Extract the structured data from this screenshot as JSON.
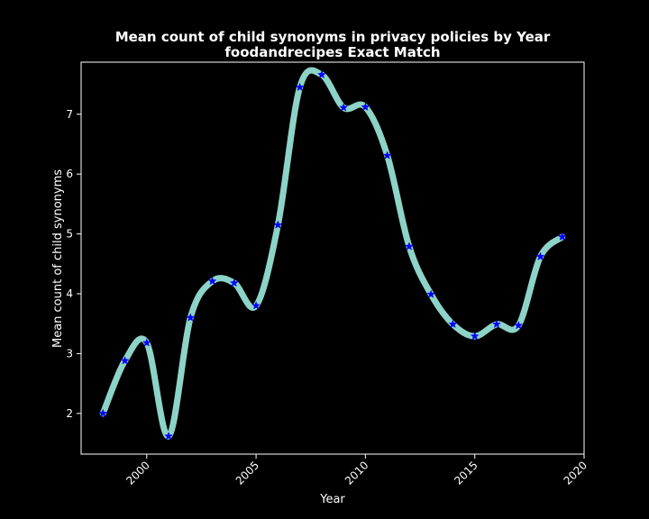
{
  "chart_data": {
    "type": "line",
    "title": "Mean count of child synonyms in privacy policies by Year",
    "subtitle": "foodandrecipes Exact Match",
    "xlabel": "Year",
    "ylabel": "Mean count of child synonyms",
    "xlim": [
      1997,
      2020
    ],
    "ylim": [
      1.32,
      7.87
    ],
    "xticks": [
      2000,
      2005,
      2010,
      2015,
      2020
    ],
    "yticks": [
      2,
      3,
      4,
      5,
      6,
      7
    ],
    "grid": false,
    "line_color": "#8dd3c7",
    "marker_color": "#0000ff",
    "background": "#000000",
    "x": [
      1998,
      1999,
      2000,
      2001,
      2002,
      2003,
      2004,
      2005,
      2006,
      2007,
      2008,
      2009,
      2010,
      2011,
      2012,
      2013,
      2014,
      2015,
      2016,
      2017,
      2018,
      2019
    ],
    "values": [
      2.0,
      2.88,
      3.18,
      1.62,
      3.6,
      4.21,
      4.18,
      3.8,
      5.15,
      7.45,
      7.66,
      7.11,
      7.12,
      6.31,
      4.79,
      3.99,
      3.49,
      3.29,
      3.49,
      3.47,
      4.62,
      4.95
    ]
  }
}
